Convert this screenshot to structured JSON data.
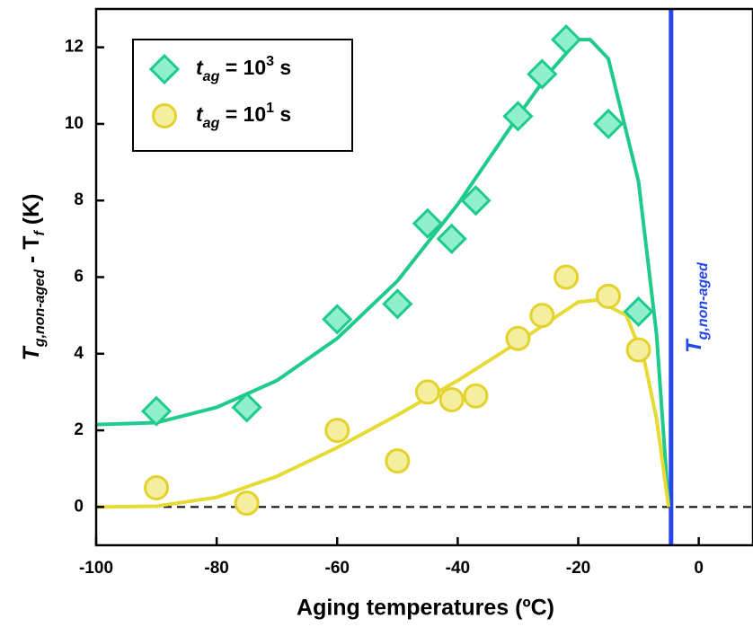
{
  "chart_data": {
    "type": "scatter",
    "xlabel": "Aging temperatures (ºC)",
    "ylabel": [
      "T",
      "g,non-aged",
      " - T",
      "f",
      " (K)"
    ],
    "xlim": [
      -100,
      9
    ],
    "ylim": [
      -1,
      13
    ],
    "xticks": [
      -100,
      -80,
      -60,
      -40,
      -20,
      0
    ],
    "yticks": [
      0,
      2,
      4,
      6,
      8,
      10,
      12
    ],
    "series": [
      {
        "name": [
          "t",
          "ag",
          " = 10",
          "3",
          " s"
        ],
        "marker": "diamond",
        "color": "#1fcb8c",
        "fill": "#90f0cb",
        "x": [
          -90,
          -75,
          -60,
          -50,
          -45,
          -41,
          -37,
          -30,
          -26,
          -22,
          -15,
          -10
        ],
        "values": [
          2.5,
          2.6,
          4.9,
          5.3,
          7.4,
          7.0,
          8.0,
          10.2,
          11.3,
          12.2,
          10.0,
          5.1
        ]
      },
      {
        "name": [
          "t",
          "ag",
          " = 10",
          "1",
          " s"
        ],
        "marker": "circle",
        "color": "#e3d22c",
        "fill": "#f4ee9e",
        "x": [
          -90,
          -75,
          -60,
          -50,
          -45,
          -41,
          -37,
          -30,
          -26,
          -22,
          -15,
          -10
        ],
        "values": [
          0.5,
          0.1,
          2.0,
          1.2,
          3.0,
          2.8,
          2.9,
          4.4,
          5.0,
          6.0,
          5.5,
          4.1
        ]
      }
    ],
    "fits": [
      {
        "color": "#1fcb8c",
        "x": [
          -100,
          -90,
          -80,
          -70,
          -60,
          -50,
          -40,
          -30,
          -25,
          -20,
          -18,
          -15,
          -10,
          -7,
          -5
        ],
        "values": [
          2.15,
          2.2,
          2.6,
          3.3,
          4.4,
          5.9,
          7.9,
          10.2,
          11.3,
          12.2,
          12.2,
          11.7,
          8.5,
          4.5,
          0
        ]
      },
      {
        "color": "#e6da35",
        "x": [
          -100,
          -90,
          -80,
          -70,
          -60,
          -50,
          -40,
          -30,
          -20,
          -17,
          -12,
          -9,
          -7,
          -5
        ],
        "values": [
          0,
          0.02,
          0.25,
          0.8,
          1.55,
          2.4,
          3.3,
          4.3,
          5.35,
          5.4,
          5.0,
          3.8,
          2.3,
          0
        ]
      }
    ],
    "vline": {
      "x": -4.6,
      "color": "#2346f0",
      "label": [
        "T",
        "g,non-aged"
      ]
    },
    "hline": {
      "y": 0
    }
  }
}
